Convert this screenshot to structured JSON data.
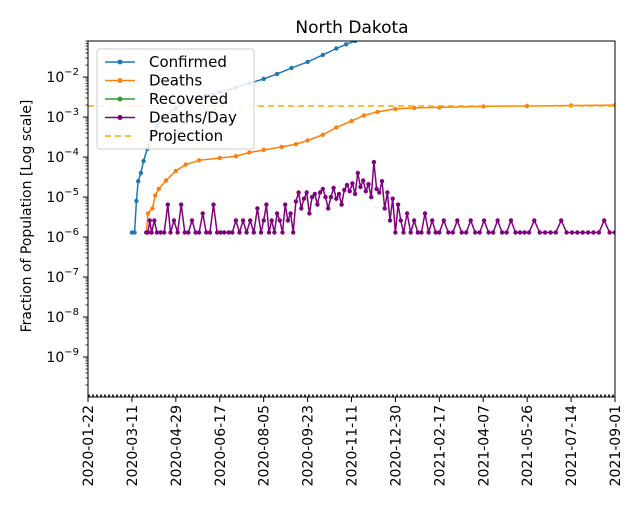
{
  "chart_data": {
    "type": "line",
    "title": "North Dakota",
    "xlabel": "",
    "ylabel": "Fraction of Population [Log scale]",
    "yscale": "log",
    "ylim": [
      1e-10,
      0.08
    ],
    "xlim": [
      "2020-01-22",
      "2021-09-01"
    ],
    "x_tick_labels": [
      "2020-01-22",
      "2020-03-11",
      "2020-04-29",
      "2020-06-17",
      "2020-08-05",
      "2020-09-23",
      "2020-11-11",
      "2020-12-30",
      "2021-02-17",
      "2021-04-07",
      "2021-05-26",
      "2021-07-14",
      "2021-09-01"
    ],
    "y_ticks": [
      {
        "value": 1e-09,
        "base": "10",
        "exp": "−9"
      },
      {
        "value": 1e-08,
        "base": "10",
        "exp": "−8"
      },
      {
        "value": 1e-07,
        "base": "10",
        "exp": "−7"
      },
      {
        "value": 1e-06,
        "base": "10",
        "exp": "−6"
      },
      {
        "value": 1e-05,
        "base": "10",
        "exp": "−5"
      },
      {
        "value": 0.0001,
        "base": "10",
        "exp": "−4"
      },
      {
        "value": 0.001,
        "base": "10",
        "exp": "−3"
      },
      {
        "value": 0.01,
        "base": "10",
        "exp": "−2"
      }
    ],
    "grid": false,
    "legend_position": "top-left",
    "series": [
      {
        "name": "Confirmed",
        "color": "#1f77b4",
        "style": "line-markers",
        "points": [
          [
            "2020-03-11",
            1.3e-06
          ],
          [
            "2020-03-14",
            1.3e-06
          ],
          [
            "2020-03-16",
            8e-06
          ],
          [
            "2020-03-18",
            2.5e-05
          ],
          [
            "2020-03-21",
            4e-05
          ],
          [
            "2020-03-24",
            8e-05
          ],
          [
            "2020-03-28",
            0.00016
          ],
          [
            "2020-04-01",
            0.0003
          ],
          [
            "2020-04-08",
            0.0006
          ],
          [
            "2020-04-15",
            0.001
          ],
          [
            "2020-04-29",
            0.0017
          ],
          [
            "2020-05-15",
            0.0026
          ],
          [
            "2020-06-01",
            0.0035
          ],
          [
            "2020-06-17",
            0.0042
          ],
          [
            "2020-07-05",
            0.0055
          ],
          [
            "2020-07-20",
            0.007
          ],
          [
            "2020-08-05",
            0.009
          ],
          [
            "2020-08-20",
            0.012
          ],
          [
            "2020-09-05",
            0.017
          ],
          [
            "2020-09-23",
            0.024
          ],
          [
            "2020-10-10",
            0.036
          ],
          [
            "2020-10-25",
            0.052
          ],
          [
            "2020-11-05",
            0.066
          ],
          [
            "2020-11-15",
            0.08
          ]
        ]
      },
      {
        "name": "Deaths",
        "color": "#ff7f0e",
        "style": "line-markers",
        "points": [
          [
            "2020-03-27",
            1.3e-06
          ],
          [
            "2020-03-29",
            3.9e-06
          ],
          [
            "2020-04-03",
            5.2e-06
          ],
          [
            "2020-04-06",
            1.1e-05
          ],
          [
            "2020-04-10",
            1.6e-05
          ],
          [
            "2020-04-18",
            2.6e-05
          ],
          [
            "2020-04-29",
            4.5e-05
          ],
          [
            "2020-05-10",
            6.5e-05
          ],
          [
            "2020-05-25",
            8.3e-05
          ],
          [
            "2020-06-17",
            9.5e-05
          ],
          [
            "2020-07-05",
            0.000105
          ],
          [
            "2020-07-20",
            0.00013
          ],
          [
            "2020-08-05",
            0.00015
          ],
          [
            "2020-08-25",
            0.00018
          ],
          [
            "2020-09-10",
            0.00021
          ],
          [
            "2020-09-23",
            0.00026
          ],
          [
            "2020-10-10",
            0.00036
          ],
          [
            "2020-10-25",
            0.00055
          ],
          [
            "2020-11-11",
            0.0008
          ],
          [
            "2020-11-25",
            0.0011
          ],
          [
            "2020-12-10",
            0.00135
          ],
          [
            "2020-12-30",
            0.0016
          ],
          [
            "2021-01-20",
            0.0017
          ],
          [
            "2021-02-17",
            0.00175
          ],
          [
            "2021-04-07",
            0.00185
          ],
          [
            "2021-05-26",
            0.0019
          ],
          [
            "2021-07-14",
            0.00195
          ],
          [
            "2021-09-01",
            0.002
          ]
        ]
      },
      {
        "name": "Recovered",
        "color": "#2ca02c",
        "style": "line-markers",
        "points": []
      },
      {
        "name": "Deaths/Day",
        "color": "#800080",
        "style": "line-markers",
        "points": [
          [
            "2020-03-27",
            1.3e-06
          ],
          [
            "2020-03-29",
            1.3e-06
          ],
          [
            "2020-03-31",
            2.6e-06
          ],
          [
            "2020-04-02",
            1.3e-06
          ],
          [
            "2020-04-05",
            2.6e-06
          ],
          [
            "2020-04-08",
            1.3e-06
          ],
          [
            "2020-04-12",
            1.3e-06
          ],
          [
            "2020-04-16",
            1.3e-06
          ],
          [
            "2020-04-20",
            6.5e-06
          ],
          [
            "2020-04-23",
            1.3e-06
          ],
          [
            "2020-04-27",
            2.6e-06
          ],
          [
            "2020-05-01",
            1.3e-06
          ],
          [
            "2020-05-05",
            6.5e-06
          ],
          [
            "2020-05-09",
            1.3e-06
          ],
          [
            "2020-05-13",
            1.3e-06
          ],
          [
            "2020-05-17",
            2.6e-06
          ],
          [
            "2020-05-21",
            1.3e-06
          ],
          [
            "2020-05-25",
            1.3e-06
          ],
          [
            "2020-05-29",
            3.9e-06
          ],
          [
            "2020-06-02",
            1.3e-06
          ],
          [
            "2020-06-06",
            1.3e-06
          ],
          [
            "2020-06-10",
            6.5e-06
          ],
          [
            "2020-06-14",
            1.3e-06
          ],
          [
            "2020-06-18",
            1.3e-06
          ],
          [
            "2020-06-22",
            1.3e-06
          ],
          [
            "2020-06-27",
            1.3e-06
          ],
          [
            "2020-07-01",
            1.3e-06
          ],
          [
            "2020-07-05",
            2.6e-06
          ],
          [
            "2020-07-09",
            1.3e-06
          ],
          [
            "2020-07-13",
            2.6e-06
          ],
          [
            "2020-07-17",
            1.3e-06
          ],
          [
            "2020-07-21",
            2.6e-06
          ],
          [
            "2020-07-25",
            1.3e-06
          ],
          [
            "2020-07-29",
            5.2e-06
          ],
          [
            "2020-08-02",
            1.3e-06
          ],
          [
            "2020-08-05",
            2.6e-06
          ],
          [
            "2020-08-08",
            6.5e-06
          ],
          [
            "2020-08-11",
            1.3e-06
          ],
          [
            "2020-08-14",
            2.6e-06
          ],
          [
            "2020-08-17",
            1.3e-06
          ],
          [
            "2020-08-20",
            3.9e-06
          ],
          [
            "2020-08-23",
            2.6e-06
          ],
          [
            "2020-08-26",
            1.3e-06
          ],
          [
            "2020-08-29",
            6.5e-06
          ],
          [
            "2020-09-01",
            2.6e-06
          ],
          [
            "2020-09-04",
            3.9e-06
          ],
          [
            "2020-09-07",
            1.3e-06
          ],
          [
            "2020-09-10",
            7.8e-06
          ],
          [
            "2020-09-13",
            1.3e-05
          ],
          [
            "2020-09-16",
            5.2e-06
          ],
          [
            "2020-09-19",
            9.1e-06
          ],
          [
            "2020-09-22",
            1.3e-05
          ],
          [
            "2020-09-25",
            3.9e-06
          ],
          [
            "2020-09-28",
            1e-05
          ],
          [
            "2020-10-01",
            1.2e-05
          ],
          [
            "2020-10-04",
            6.5e-06
          ],
          [
            "2020-10-07",
            1.3e-05
          ],
          [
            "2020-10-10",
            1.6e-05
          ],
          [
            "2020-10-13",
            1e-05
          ],
          [
            "2020-10-16",
            5.2e-06
          ],
          [
            "2020-10-19",
            1e-05
          ],
          [
            "2020-10-22",
            1.7e-05
          ],
          [
            "2020-10-25",
            9.1e-06
          ],
          [
            "2020-10-28",
            1.2e-05
          ],
          [
            "2020-10-31",
            6.5e-06
          ],
          [
            "2020-11-03",
            1.5e-05
          ],
          [
            "2020-11-06",
            2e-05
          ],
          [
            "2020-11-09",
            1.4e-05
          ],
          [
            "2020-11-12",
            2.2e-05
          ],
          [
            "2020-11-15",
            1.2e-05
          ],
          [
            "2020-11-18",
            4e-05
          ],
          [
            "2020-11-21",
            1.8e-05
          ],
          [
            "2020-11-24",
            2.6e-05
          ],
          [
            "2020-11-27",
            1.4e-05
          ],
          [
            "2020-11-30",
            2.1e-05
          ],
          [
            "2020-12-03",
            1e-05
          ],
          [
            "2020-12-06",
            7.5e-05
          ],
          [
            "2020-12-09",
            1.6e-05
          ],
          [
            "2020-12-12",
            1.3e-05
          ],
          [
            "2020-12-15",
            2.5e-05
          ],
          [
            "2020-12-18",
            5.2e-06
          ],
          [
            "2020-12-21",
            1.3e-05
          ],
          [
            "2020-12-24",
            2.6e-06
          ],
          [
            "2020-12-27",
            9.1e-06
          ],
          [
            "2020-12-30",
            1.3e-06
          ],
          [
            "2021-01-02",
            6.5e-06
          ],
          [
            "2021-01-05",
            2.6e-06
          ],
          [
            "2021-01-08",
            1.3e-06
          ],
          [
            "2021-01-12",
            3.9e-06
          ],
          [
            "2021-01-16",
            1.3e-06
          ],
          [
            "2021-01-20",
            2.6e-06
          ],
          [
            "2021-01-24",
            1.3e-06
          ],
          [
            "2021-01-28",
            1.3e-06
          ],
          [
            "2021-02-01",
            3.9e-06
          ],
          [
            "2021-02-05",
            1.3e-06
          ],
          [
            "2021-02-09",
            2.6e-06
          ],
          [
            "2021-02-13",
            1.3e-06
          ],
          [
            "2021-02-17",
            1.3e-06
          ],
          [
            "2021-02-22",
            2.6e-06
          ],
          [
            "2021-02-27",
            1.3e-06
          ],
          [
            "2021-03-04",
            1.3e-06
          ],
          [
            "2021-03-09",
            2.6e-06
          ],
          [
            "2021-03-14",
            1.3e-06
          ],
          [
            "2021-03-19",
            1.3e-06
          ],
          [
            "2021-03-24",
            2.6e-06
          ],
          [
            "2021-03-29",
            1.3e-06
          ],
          [
            "2021-04-03",
            1.3e-06
          ],
          [
            "2021-04-08",
            2.6e-06
          ],
          [
            "2021-04-13",
            1.3e-06
          ],
          [
            "2021-04-18",
            1.3e-06
          ],
          [
            "2021-04-23",
            2.6e-06
          ],
          [
            "2021-04-28",
            1.3e-06
          ],
          [
            "2021-05-03",
            1.3e-06
          ],
          [
            "2021-05-08",
            2.6e-06
          ],
          [
            "2021-05-13",
            1.3e-06
          ],
          [
            "2021-05-18",
            1.3e-06
          ],
          [
            "2021-05-23",
            1.3e-06
          ],
          [
            "2021-05-28",
            1.3e-06
          ],
          [
            "2021-06-03",
            2.6e-06
          ],
          [
            "2021-06-09",
            1.3e-06
          ],
          [
            "2021-06-15",
            1.3e-06
          ],
          [
            "2021-06-21",
            1.3e-06
          ],
          [
            "2021-06-27",
            1.3e-06
          ],
          [
            "2021-07-03",
            2.6e-06
          ],
          [
            "2021-07-09",
            1.3e-06
          ],
          [
            "2021-07-15",
            1.3e-06
          ],
          [
            "2021-07-21",
            1.3e-06
          ],
          [
            "2021-07-27",
            1.3e-06
          ],
          [
            "2021-08-02",
            1.3e-06
          ],
          [
            "2021-08-08",
            1.3e-06
          ],
          [
            "2021-08-14",
            1.3e-06
          ],
          [
            "2021-08-20",
            2.6e-06
          ],
          [
            "2021-08-26",
            1.3e-06
          ],
          [
            "2021-09-01",
            1.3e-06
          ]
        ]
      },
      {
        "name": "Projection",
        "color": "#ffa500",
        "style": "dashed",
        "y_constant": 0.0019
      }
    ]
  }
}
